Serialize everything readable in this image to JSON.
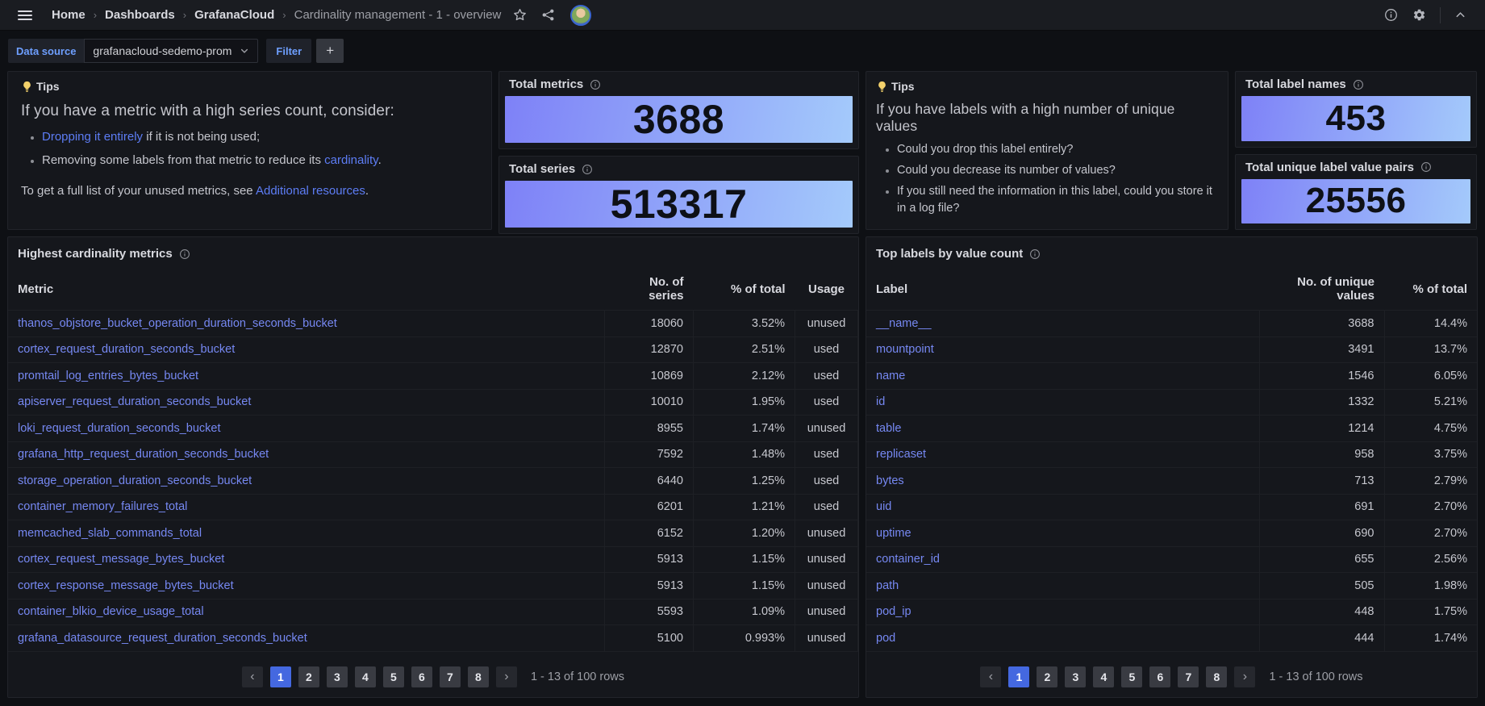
{
  "topnav": {
    "breadcrumbs": [
      "Home",
      "Dashboards",
      "GrafanaCloud",
      "Cardinality management - 1 - overview"
    ],
    "separator": "›"
  },
  "toolbar": {
    "datasource_label": "Data source",
    "datasource_value": "grafanacloud-sedemo-prom",
    "filter_label": "Filter",
    "add_label": "+"
  },
  "tips_metrics": {
    "header": "Tips",
    "title": "If you have a metric with a high series count, consider:",
    "bullets": [
      {
        "pre": "",
        "link": "Dropping it entirely",
        "post": " if it is not being used;"
      },
      {
        "pre": "Removing some labels from that metric to reduce its ",
        "link": "cardinality",
        "post": "."
      }
    ],
    "footer": {
      "pre": "To get a full list of your unused metrics, see ",
      "link": "Additional resources",
      "post": "."
    }
  },
  "tips_labels": {
    "header": "Tips",
    "title": "If you have labels with a high number of unique values",
    "bullets": [
      "Could you drop this label entirely?",
      "Could you decrease its number of values?",
      "If you still need the information in this label, could you store it in a log file?"
    ]
  },
  "stats": {
    "total_metrics": {
      "title": "Total metrics",
      "value": "3688"
    },
    "total_series": {
      "title": "Total series",
      "value": "513317"
    },
    "total_label_names": {
      "title": "Total label names",
      "value": "453"
    },
    "total_unique_pairs": {
      "title": "Total unique label value pairs",
      "value": "25556"
    }
  },
  "metrics_table": {
    "title": "Highest cardinality metrics",
    "columns": [
      "Metric",
      "No. of series",
      "% of total",
      "Usage"
    ],
    "rows": [
      [
        "thanos_objstore_bucket_operation_duration_seconds_bucket",
        "18060",
        "3.52%",
        "unused"
      ],
      [
        "cortex_request_duration_seconds_bucket",
        "12870",
        "2.51%",
        "used"
      ],
      [
        "promtail_log_entries_bytes_bucket",
        "10869",
        "2.12%",
        "used"
      ],
      [
        "apiserver_request_duration_seconds_bucket",
        "10010",
        "1.95%",
        "used"
      ],
      [
        "loki_request_duration_seconds_bucket",
        "8955",
        "1.74%",
        "unused"
      ],
      [
        "grafana_http_request_duration_seconds_bucket",
        "7592",
        "1.48%",
        "used"
      ],
      [
        "storage_operation_duration_seconds_bucket",
        "6440",
        "1.25%",
        "used"
      ],
      [
        "container_memory_failures_total",
        "6201",
        "1.21%",
        "used"
      ],
      [
        "memcached_slab_commands_total",
        "6152",
        "1.20%",
        "unused"
      ],
      [
        "cortex_request_message_bytes_bucket",
        "5913",
        "1.15%",
        "unused"
      ],
      [
        "cortex_response_message_bytes_bucket",
        "5913",
        "1.15%",
        "unused"
      ],
      [
        "container_blkio_device_usage_total",
        "5593",
        "1.09%",
        "unused"
      ],
      [
        "grafana_datasource_request_duration_seconds_bucket",
        "5100",
        "0.993%",
        "unused"
      ]
    ]
  },
  "labels_table": {
    "title": "Top labels by value count",
    "columns": [
      "Label",
      "No. of unique values",
      "% of total"
    ],
    "rows": [
      [
        "__name__",
        "3688",
        "14.4%"
      ],
      [
        "mountpoint",
        "3491",
        "13.7%"
      ],
      [
        "name",
        "1546",
        "6.05%"
      ],
      [
        "id",
        "1332",
        "5.21%"
      ],
      [
        "table",
        "1214",
        "4.75%"
      ],
      [
        "replicaset",
        "958",
        "3.75%"
      ],
      [
        "bytes",
        "713",
        "2.79%"
      ],
      [
        "uid",
        "691",
        "2.70%"
      ],
      [
        "uptime",
        "690",
        "2.70%"
      ],
      [
        "container_id",
        "655",
        "2.56%"
      ],
      [
        "path",
        "505",
        "1.98%"
      ],
      [
        "pod_ip",
        "448",
        "1.75%"
      ],
      [
        "pod",
        "444",
        "1.74%"
      ]
    ]
  },
  "pagination": {
    "prev": "‹",
    "next": "›",
    "pages": [
      "1",
      "2",
      "3",
      "4",
      "5",
      "6",
      "7",
      "8"
    ],
    "active": "1",
    "info": "1 - 13 of 100 rows"
  },
  "colors": {
    "stat_gradient_start": "#7e81f7",
    "stat_gradient_end": "#a4cafb",
    "link": "#7688f2",
    "tips_link": "#5d7df5",
    "active_page": "#4468e0",
    "variable_label": "#6e9fff"
  }
}
